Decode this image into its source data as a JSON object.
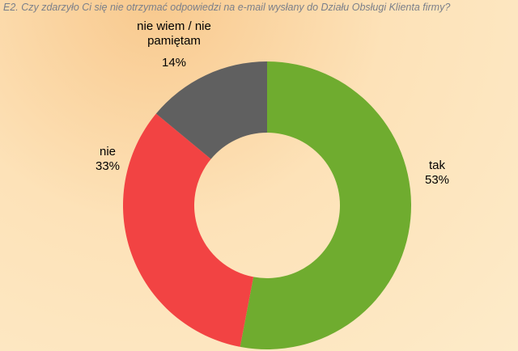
{
  "chart_data": {
    "type": "donut",
    "title": "E2. Czy zdarzyło Ci się nie otrzymać odpowiedzi na e-mail wysłany do Działu Obsługi Klienta firmy?",
    "categories": [
      "tak",
      "nie",
      "nie wiem / nie pamiętam"
    ],
    "values": [
      53,
      33,
      14
    ],
    "value_labels": [
      "53%",
      "33%",
      "14%"
    ],
    "colors": [
      "#6fac2f",
      "#f24343",
      "#606060"
    ]
  }
}
